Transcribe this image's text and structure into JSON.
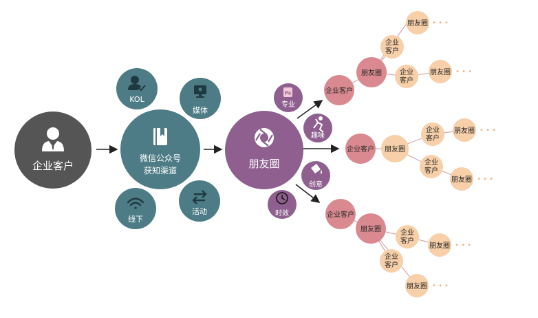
{
  "colors": {
    "dark": "#555555",
    "teal": "#4E7C86",
    "purple": "#8E5F8F",
    "pink": "#D9898F",
    "peach": "#F7CFA8",
    "dots": "#F2B27C",
    "arrow": "#222222"
  },
  "nodes": {
    "client": "企业客户",
    "channel_line1": "微信公众号",
    "channel_line2": "获知渠道",
    "moments": "朋友圈"
  },
  "channels": {
    "kol": {
      "label": "KOL",
      "icon": "person-check-icon"
    },
    "media": {
      "label": "媒体",
      "icon": "monitor-icon"
    },
    "offline": {
      "label": "线下",
      "icon": "wifi-icon"
    },
    "activity": {
      "label": "活动",
      "icon": "refresh-arrows-icon"
    }
  },
  "attributes": {
    "professional": {
      "label": "专业",
      "icon": "ps-badge-icon"
    },
    "fun": {
      "label": "趣味",
      "icon": "runner-icon"
    },
    "creative": {
      "label": "创意",
      "icon": "paint-bucket-icon"
    },
    "timely": {
      "label": "时效",
      "icon": "clock-icon"
    }
  },
  "spread": {
    "client_label": "企业客户",
    "moments_label": "朋友圈",
    "ellipsis": "• • •"
  }
}
